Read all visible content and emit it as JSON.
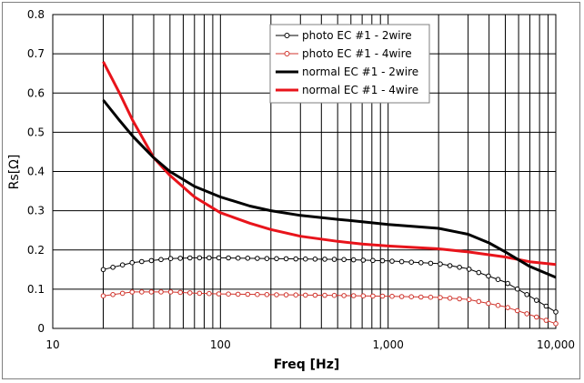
{
  "chart_data": {
    "type": "line",
    "title": "",
    "xlabel": "Freq [Hz]",
    "ylabel": "Rs[Ω]",
    "xscale": "log",
    "xlim": [
      10,
      10000
    ],
    "ylim": [
      0,
      0.8
    ],
    "x_ticks": [
      10,
      100,
      1000,
      10000
    ],
    "x_tick_labels": [
      "10",
      "100",
      "1,000",
      "10,000"
    ],
    "y_ticks": [
      0,
      0.1,
      0.2,
      0.3,
      0.4,
      0.5,
      0.6,
      0.7,
      0.8
    ],
    "y_tick_labels": [
      "0",
      "0.1",
      "0.2",
      "0.3",
      "0.4",
      "0.5",
      "0.6",
      "0.7",
      "0.8"
    ],
    "grid": true,
    "legend_position": "top-right",
    "series": [
      {
        "name": "photo EC #1 - 2wire",
        "color": "#000000",
        "style": "line-circle-markers",
        "x": [
          20,
          30,
          50,
          70,
          100,
          200,
          500,
          1000,
          2000,
          3000,
          5000,
          7000,
          10000
        ],
        "y": [
          0.15,
          0.168,
          0.178,
          0.18,
          0.18,
          0.178,
          0.176,
          0.172,
          0.165,
          0.152,
          0.118,
          0.082,
          0.042
        ]
      },
      {
        "name": "photo EC #1 - 4wire",
        "color": "#d0342c",
        "style": "line-circle-markers",
        "x": [
          20,
          30,
          50,
          70,
          100,
          200,
          500,
          1000,
          2000,
          3000,
          5000,
          7000,
          10000
        ],
        "y": [
          0.083,
          0.093,
          0.093,
          0.09,
          0.088,
          0.086,
          0.084,
          0.082,
          0.079,
          0.074,
          0.055,
          0.035,
          0.012
        ]
      },
      {
        "name": "normal EC #1 - 2wire",
        "color": "#000000",
        "style": "thick-line",
        "x": [
          20,
          25,
          30,
          40,
          50,
          70,
          100,
          150,
          200,
          300,
          500,
          700,
          1000,
          2000,
          3000,
          4000,
          5000,
          7000,
          10000
        ],
        "y": [
          0.582,
          0.53,
          0.49,
          0.435,
          0.4,
          0.362,
          0.335,
          0.312,
          0.3,
          0.288,
          0.278,
          0.272,
          0.265,
          0.255,
          0.24,
          0.218,
          0.195,
          0.158,
          0.13
        ]
      },
      {
        "name": "normal EC #1 - 4wire",
        "color": "#e8141b",
        "style": "thick-line",
        "x": [
          20,
          25,
          30,
          40,
          50,
          70,
          100,
          150,
          200,
          300,
          500,
          700,
          1000,
          2000,
          3000,
          5000,
          7000,
          10000
        ],
        "y": [
          0.68,
          0.6,
          0.53,
          0.435,
          0.39,
          0.335,
          0.295,
          0.268,
          0.252,
          0.235,
          0.222,
          0.215,
          0.21,
          0.203,
          0.195,
          0.182,
          0.17,
          0.163
        ]
      }
    ]
  }
}
